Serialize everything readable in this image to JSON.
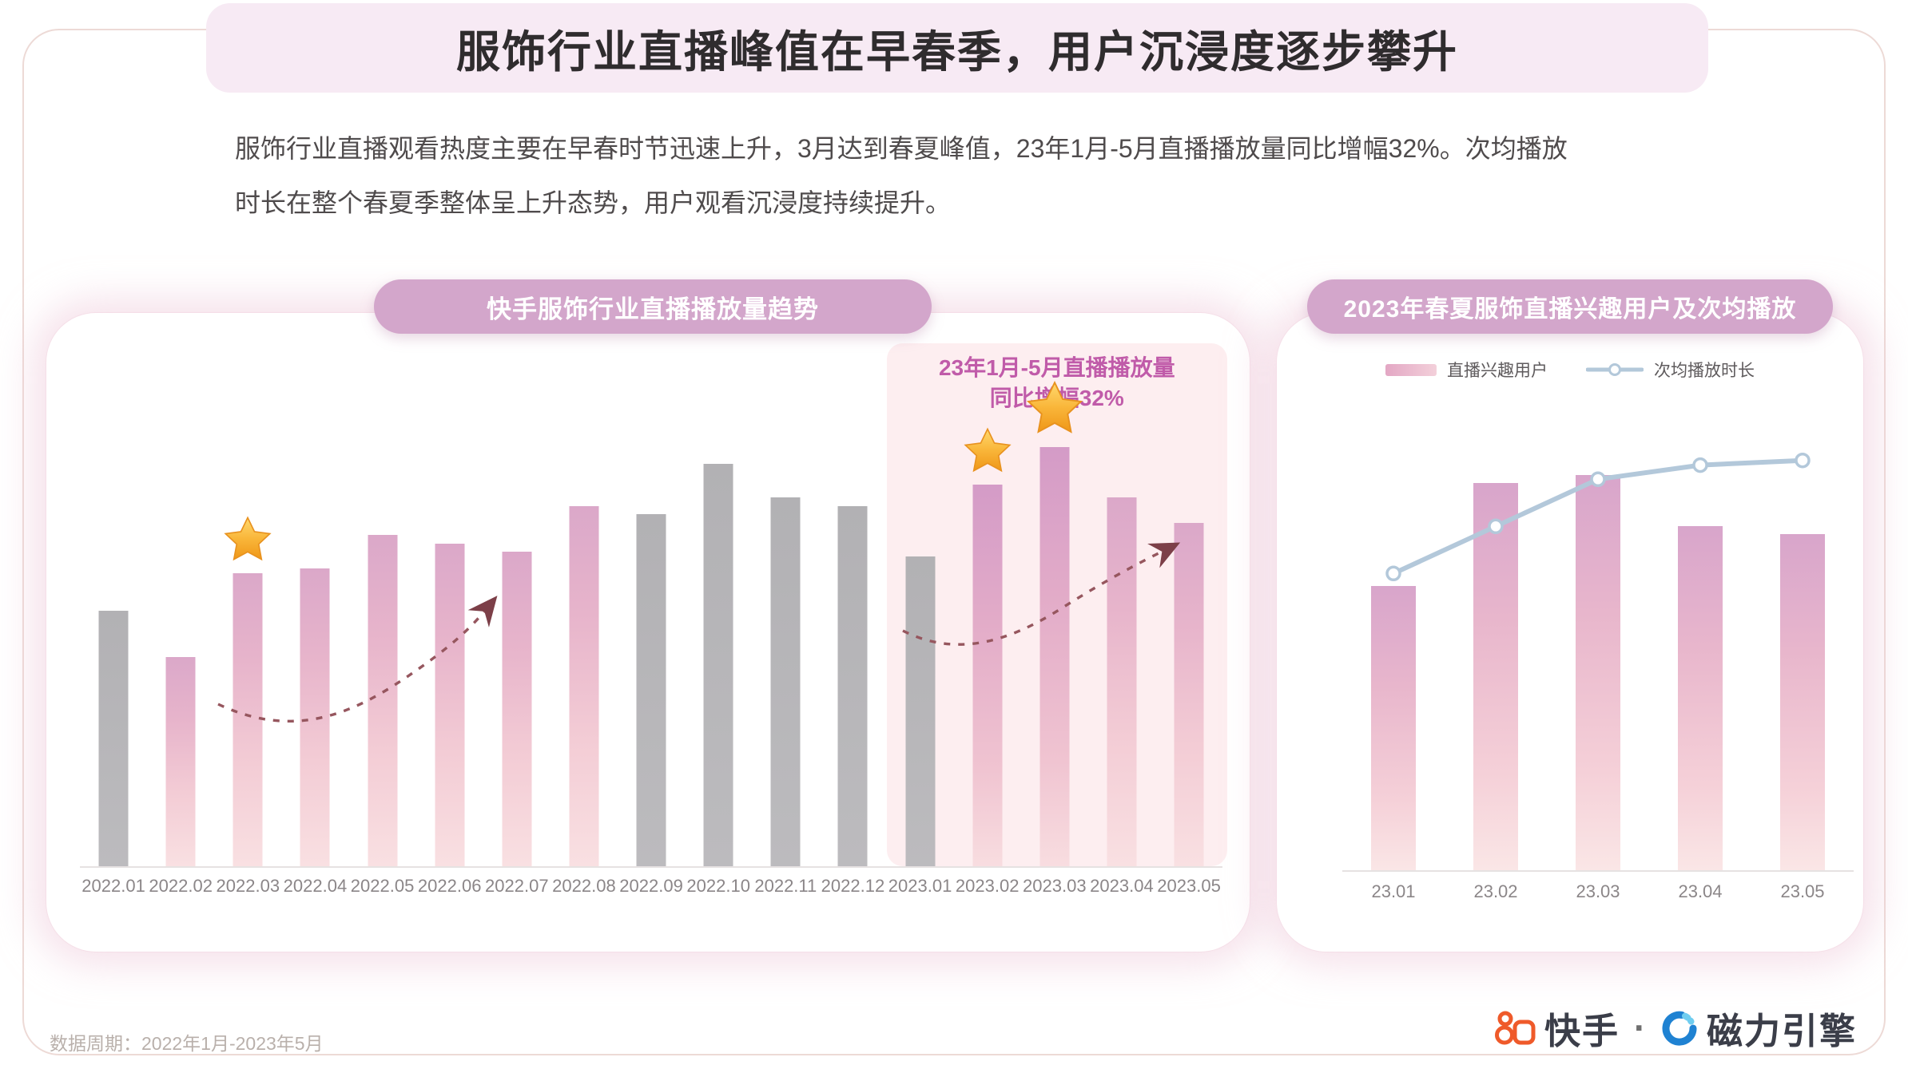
{
  "header": {
    "title": "服饰行业直播峰值在早春季，用户沉浸度逐步攀升"
  },
  "intro": {
    "line1": "服饰行业直播观看热度主要在早春时节迅速上升，3月达到春夏峰值，23年1月-5月直播播放量同比增幅32%。次均播放",
    "line2": "时长在整个春夏季整体呈上升态势，用户观看沉浸度持续提升。"
  },
  "chart_data": [
    {
      "type": "bar",
      "title": "快手服饰行业直播播放量趋势",
      "categories": [
        "2022.01",
        "2022.02",
        "2022.03",
        "2022.04",
        "2022.05",
        "2022.06",
        "2022.07",
        "2022.08",
        "2022.09",
        "2022.10",
        "2022.11",
        "2022.12",
        "2023.01",
        "2023.02",
        "2023.03",
        "2023.04",
        "2023.05"
      ],
      "values": [
        61,
        50,
        70,
        71,
        79,
        77,
        75,
        86,
        84,
        96,
        88,
        86,
        74,
        91,
        100,
        88,
        82
      ],
      "unit": "relative play-volume index (0-100, read from bar heights)",
      "ylim": [
        0,
        100
      ],
      "bar_colors": [
        "gray",
        "pink",
        "pink",
        "pink",
        "pink",
        "pink",
        "pink",
        "pink",
        "gray",
        "gray",
        "gray",
        "gray",
        "gray",
        "accent",
        "accent",
        "pink",
        "pink"
      ],
      "starred_indices": [
        2,
        13,
        14
      ],
      "highlight": {
        "from_category": "2023.01",
        "to_category": "2023.05",
        "from_index": 12
      },
      "annotation": {
        "line1": "23年1月-5月直播播放量",
        "line2": "同比增幅32%"
      },
      "xlabel": "",
      "ylabel": "",
      "grid": false,
      "axis_values_shown": false
    },
    {
      "type": "bar+line",
      "title": "2023年春夏服饰直播兴趣用户及次均播放",
      "categories": [
        "23.01",
        "23.02",
        "23.03",
        "23.04",
        "23.05"
      ],
      "series": [
        {
          "name": "直播兴趣用户",
          "type": "bar",
          "values": [
            72,
            98,
            100,
            87,
            85
          ]
        },
        {
          "name": "次均播放时长",
          "type": "line",
          "values": [
            63,
            73,
            83,
            86,
            87
          ]
        }
      ],
      "unit": "relative index (0-100, read from bar/line heights)",
      "ylim": [
        0,
        100
      ],
      "legend_position": "top",
      "xlabel": "",
      "ylabel": "",
      "grid": false,
      "axis_values_shown": false
    }
  ],
  "footer": {
    "data_period": "数据周期：2022年1月-2023年5月",
    "brand_left": "快手",
    "dot": "·",
    "brand_right": "磁力引擎"
  },
  "colors": {
    "banner_bg": "#f7eaf4",
    "pill_bg": "#d3a6cb",
    "highlight_bg": "#fdeef0",
    "annotation_text": "#c05ba9",
    "bar_pink_top": "#dba8c9",
    "bar_pink_bottom": "#f9e0e2",
    "bar_gray": "#b5b4b7",
    "line_blue": "#b3c8da",
    "star_gold": "#f6a72c",
    "arrow_maroon": "#8a4a52",
    "kuaishou_orange": "#ef5a2a",
    "engine_blue": "#1f82d2"
  }
}
